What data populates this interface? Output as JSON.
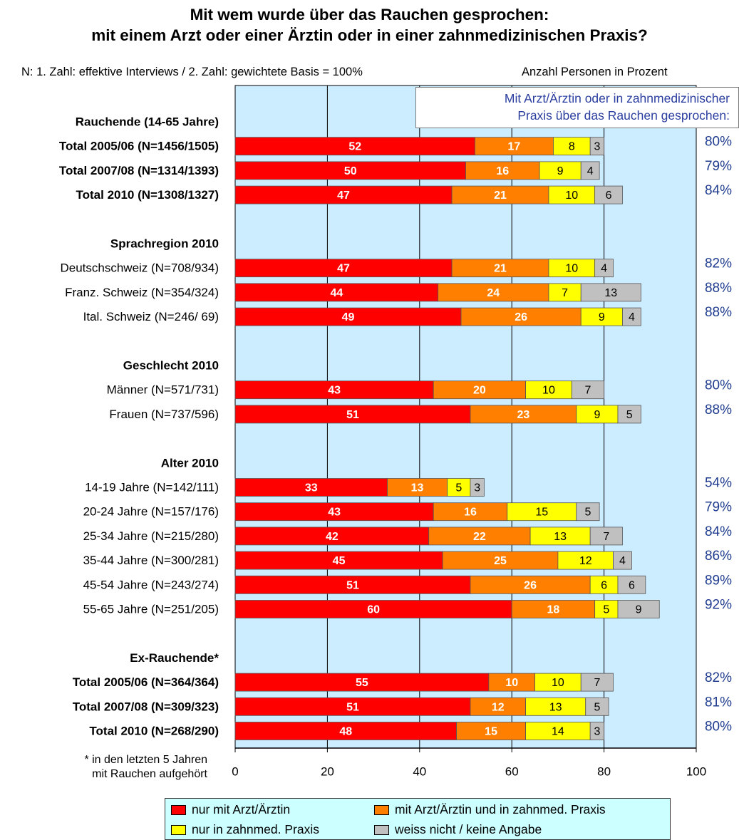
{
  "title_line1": "Mit wem wurde über das Rauchen gesprochen:",
  "title_line2": "mit einem Arzt oder einer Ärztin oder in einer zahnmedizinischen Praxis?",
  "note_left": "N: 1. Zahl: effektive Interviews / 2. Zahl: gewichtete Basis = 100%",
  "note_right": "Anzahl Personen in Prozent",
  "callout_line1": "Mit Arzt/Ärztin oder in zahnmedizinischer",
  "callout_line2": "Praxis über das Rauchen gesprochen:",
  "footnote_line1": "* in den letzten 5 Jahren",
  "footnote_line2": "mit Rauchen aufgehört",
  "colors": {
    "plot_bg": "#ccecff",
    "red": "#ff0000",
    "orange": "#ff8000",
    "yellow": "#ffff00",
    "gray": "#c0c0c0",
    "pct_text": "#1f3c8f"
  },
  "legend": [
    {
      "label": "nur mit Arzt/Ärztin",
      "color": "#ff0000"
    },
    {
      "label": "mit Arzt/Ärztin und in zahnmed. Praxis",
      "color": "#ff8000"
    },
    {
      "label": "nur in zahnmed. Praxis",
      "color": "#ffff00"
    },
    {
      "label": "weiss nicht / keine Angabe",
      "color": "#c0c0c0"
    }
  ],
  "chart_data": {
    "type": "bar",
    "orientation": "horizontal",
    "stacked": true,
    "xlim": [
      0,
      100
    ],
    "xticks": [
      0,
      20,
      40,
      60,
      80,
      100
    ],
    "grid": true,
    "legend_position": "bottom",
    "series_names": [
      "nur mit Arzt/Ärztin",
      "mit Arzt/Ärztin und in zahnmed. Praxis",
      "nur in zahnmed. Praxis",
      "weiss nicht / keine Angabe"
    ],
    "groups": [
      {
        "heading": "Rauchende (14-65 Jahre)",
        "rows": [
          {
            "label": "Total 2005/06 (N=1456/1505)",
            "bold": true,
            "values": [
              52,
              17,
              8,
              3
            ],
            "total": "80%"
          },
          {
            "label": "Total 2007/08 (N=1314/1393)",
            "bold": true,
            "values": [
              50,
              16,
              9,
              4
            ],
            "total": "79%"
          },
          {
            "label": "Total 2010 (N=1308/1327)",
            "bold": true,
            "values": [
              47,
              21,
              10,
              6
            ],
            "total": "84%"
          }
        ]
      },
      {
        "heading": "Sprachregion 2010",
        "rows": [
          {
            "label": "Deutschschweiz (N=708/934)",
            "bold": false,
            "values": [
              47,
              21,
              10,
              4
            ],
            "total": "82%"
          },
          {
            "label": "Franz. Schweiz (N=354/324)",
            "bold": false,
            "values": [
              44,
              24,
              7,
              13
            ],
            "total": "88%"
          },
          {
            "label": "Ital. Schweiz (N=246/ 69)",
            "bold": false,
            "values": [
              49,
              26,
              9,
              4
            ],
            "total": "88%"
          }
        ]
      },
      {
        "heading": "Geschlecht 2010",
        "rows": [
          {
            "label": "Männer (N=571/731)",
            "bold": false,
            "values": [
              43,
              20,
              10,
              7
            ],
            "total": "80%"
          },
          {
            "label": "Frauen (N=737/596)",
            "bold": false,
            "values": [
              51,
              23,
              9,
              5
            ],
            "total": "88%"
          }
        ]
      },
      {
        "heading": "Alter 2010",
        "rows": [
          {
            "label": "14-19 Jahre (N=142/111)",
            "bold": false,
            "values": [
              33,
              13,
              5,
              3
            ],
            "total": "54%"
          },
          {
            "label": "20-24 Jahre (N=157/176)",
            "bold": false,
            "values": [
              43,
              16,
              15,
              5
            ],
            "total": "79%"
          },
          {
            "label": "25-34 Jahre (N=215/280)",
            "bold": false,
            "values": [
              42,
              22,
              13,
              7
            ],
            "total": "84%"
          },
          {
            "label": "35-44 Jahre (N=300/281)",
            "bold": false,
            "values": [
              45,
              25,
              12,
              4
            ],
            "total": "86%"
          },
          {
            "label": "45-54 Jahre (N=243/274)",
            "bold": false,
            "values": [
              51,
              26,
              6,
              6
            ],
            "total": "89%"
          },
          {
            "label": "55-65 Jahre (N=251/205)",
            "bold": false,
            "values": [
              60,
              18,
              5,
              9
            ],
            "total": "92%"
          }
        ]
      },
      {
        "heading": "Ex-Rauchende*",
        "rows": [
          {
            "label": "Total 2005/06 (N=364/364)",
            "bold": true,
            "values": [
              55,
              10,
              10,
              7
            ],
            "total": "82%"
          },
          {
            "label": "Total 2007/08 (N=309/323)",
            "bold": true,
            "values": [
              51,
              12,
              13,
              5
            ],
            "total": "81%"
          },
          {
            "label": "Total 2010 (N=268/290)",
            "bold": true,
            "values": [
              48,
              15,
              14,
              3
            ],
            "total": "80%"
          }
        ]
      }
    ]
  }
}
